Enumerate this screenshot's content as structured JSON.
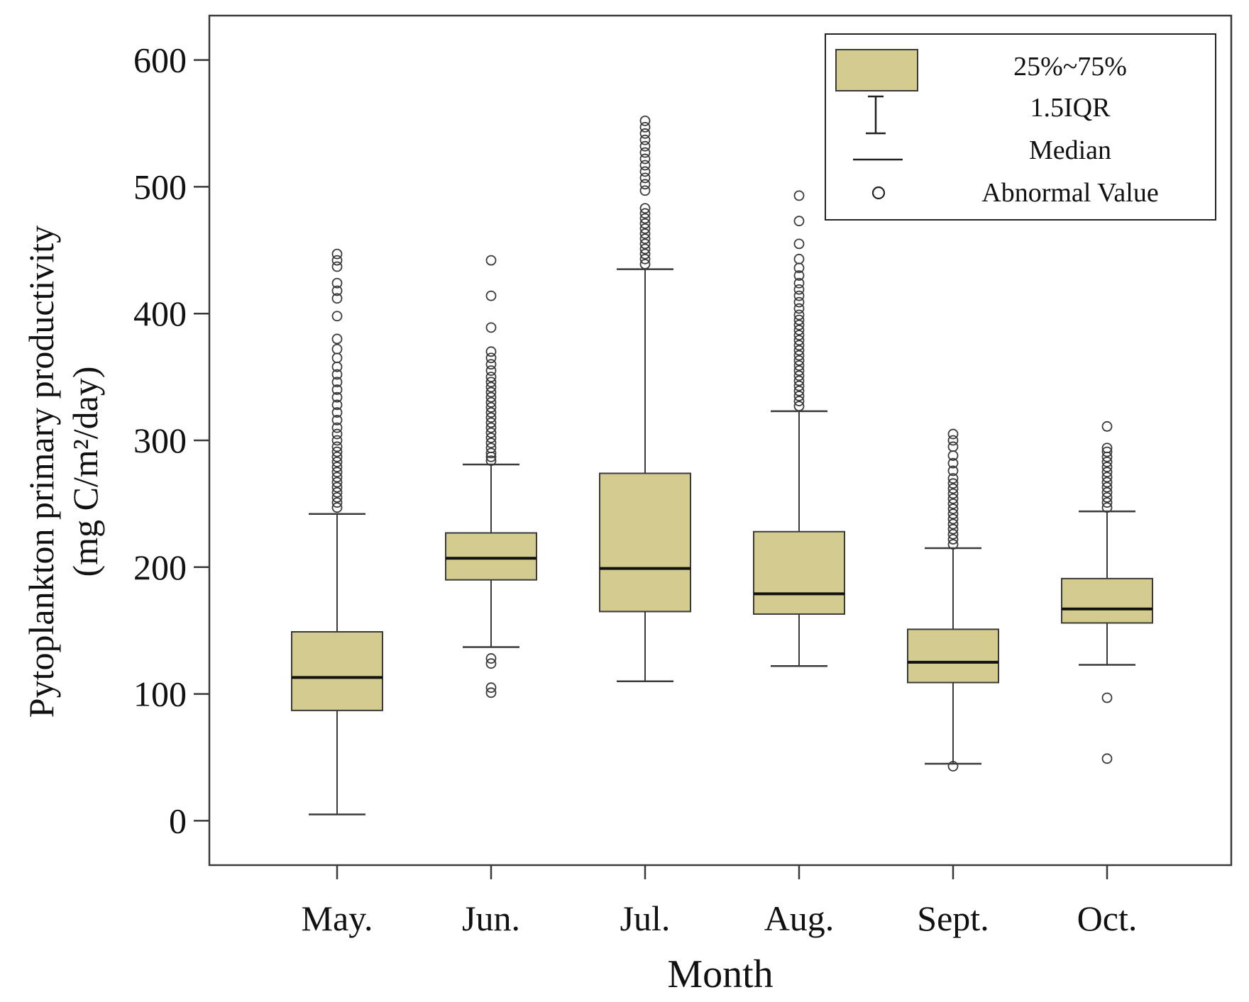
{
  "colors": {
    "box_fill": "#d4cc8f",
    "stroke": "#3a3a3a",
    "median": "#111111",
    "background": "#ffffff"
  },
  "chart_data": {
    "type": "boxplot",
    "title": "",
    "xlabel": "Month",
    "ylabel_line1": "Pytoplankton primary productivity",
    "ylabel_line2": "(mg C/m²/day)",
    "ylim": [
      -35,
      635
    ],
    "yticks": [
      0,
      100,
      200,
      300,
      400,
      500,
      600
    ],
    "ytick_labels": [
      "0",
      "100",
      "200",
      "300",
      "400",
      "500",
      "600"
    ],
    "categories": [
      "May.",
      "Jun.",
      "Jul.",
      "Aug.",
      "Sept.",
      "Oct."
    ],
    "boxes": [
      {
        "month": "May.",
        "whisker_low": 5,
        "q1": 87,
        "median": 113,
        "q3": 149,
        "whisker_high": 242,
        "outliers": [
          247,
          251,
          255,
          259,
          263,
          267,
          271,
          275,
          279,
          283,
          287,
          291,
          295,
          300,
          305,
          310,
          316,
          322,
          328,
          334,
          340,
          346,
          352,
          358,
          365,
          372,
          380,
          398,
          412,
          418,
          424,
          437,
          442,
          447
        ]
      },
      {
        "month": "Jun.",
        "whisker_low": 137,
        "q1": 190,
        "median": 207,
        "q3": 227,
        "whisker_high": 281,
        "outliers": [
          101,
          105,
          124,
          128,
          284,
          287,
          290,
          294,
          298,
          302,
          306,
          310,
          314,
          318,
          322,
          326,
          330,
          334,
          338,
          342,
          346,
          350,
          355,
          360,
          365,
          370,
          389,
          414,
          442
        ]
      },
      {
        "month": "Jul.",
        "whisker_low": 110,
        "q1": 165,
        "median": 199,
        "q3": 274,
        "whisker_high": 435,
        "outliers": [
          439,
          443,
          447,
          451,
          455,
          459,
          463,
          467,
          471,
          475,
          479,
          483,
          497,
          502,
          507,
          512,
          517,
          522,
          527,
          532,
          537,
          542,
          547,
          552
        ]
      },
      {
        "month": "Aug.",
        "whisker_low": 122,
        "q1": 163,
        "median": 179,
        "q3": 228,
        "whisker_high": 323,
        "outliers": [
          327,
          331,
          335,
          339,
          343,
          347,
          351,
          355,
          359,
          363,
          367,
          371,
          375,
          379,
          383,
          387,
          391,
          395,
          399,
          404,
          409,
          414,
          419,
          424,
          430,
          436,
          443,
          455,
          473,
          493
        ]
      },
      {
        "month": "Sept.",
        "whisker_low": 45,
        "q1": 109,
        "median": 125,
        "q3": 151,
        "whisker_high": 215,
        "outliers": [
          43,
          218,
          222,
          226,
          230,
          234,
          238,
          242,
          246,
          250,
          254,
          258,
          262,
          266,
          270,
          276,
          282,
          288,
          295,
          300,
          305
        ]
      },
      {
        "month": "Oct.",
        "whisker_low": 123,
        "q1": 156,
        "median": 167,
        "q3": 191,
        "whisker_high": 244,
        "outliers": [
          49,
          97,
          247,
          251,
          255,
          259,
          263,
          267,
          271,
          275,
          279,
          283,
          287,
          291,
          294,
          311
        ]
      }
    ],
    "legend": {
      "position": "top-right",
      "entries": [
        "25%~75%",
        "1.5IQR",
        "Median",
        "Abnormal Value"
      ]
    }
  }
}
